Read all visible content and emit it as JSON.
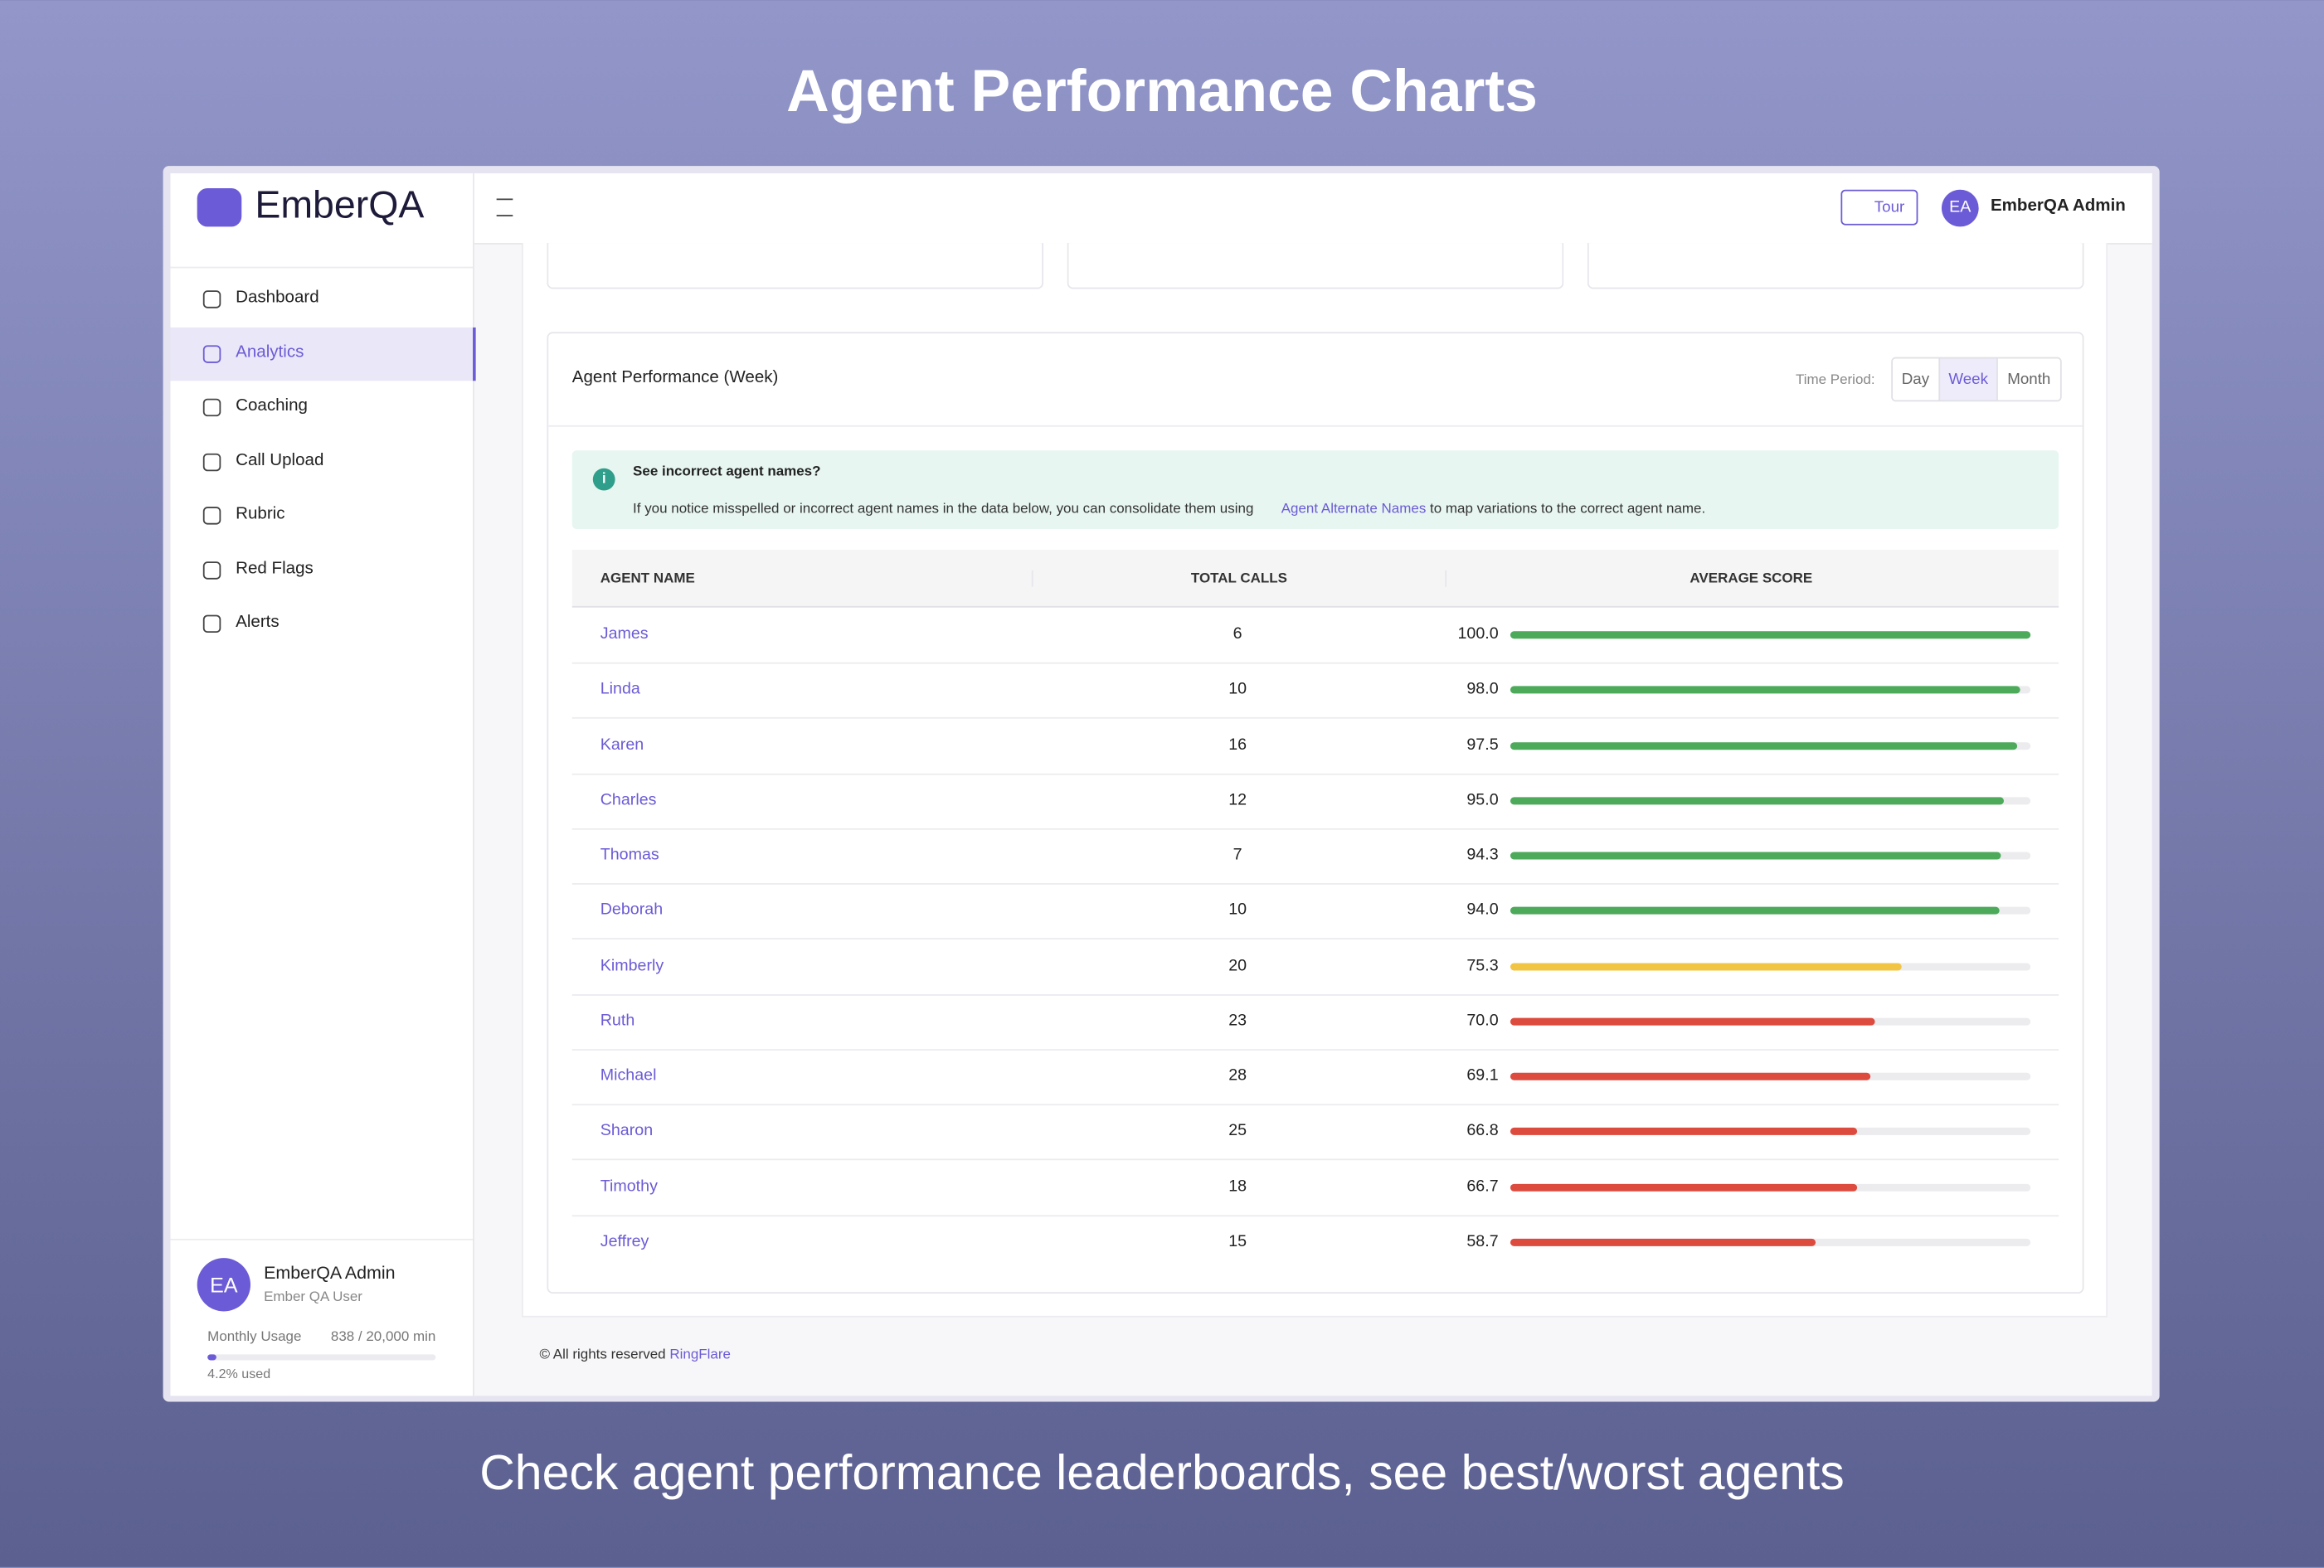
{
  "page": {
    "title": "Agent Performance Charts",
    "caption": "Check agent performance leaderboards, see best/worst agents"
  },
  "app": {
    "brand": "EmberQA",
    "tour": "Tour",
    "initials": "EA",
    "user_name": "EmberQA Admin",
    "nav": [
      "Dashboard",
      "Analytics",
      "Coaching",
      "Call Upload",
      "Rubric",
      "Red Flags",
      "Alerts"
    ],
    "active_nav": 1,
    "profile": {
      "initials": "EA",
      "name": "EmberQA Admin",
      "role": "Ember QA User"
    },
    "usage": {
      "label": "Monthly Usage",
      "amount": "838 / 20,000 min",
      "percent": 4.2,
      "percent_label": "4.2% used",
      "range": [
        0,
        100
      ]
    }
  },
  "panel": {
    "title": "Agent Performance (Week)",
    "time_period_label": "Time Period:",
    "periods": [
      "Day",
      "Week",
      "Month"
    ],
    "active_period": 1,
    "notice": {
      "title": "See incorrect agent names?",
      "text_before": "If you notice misspelled or incorrect agent names in the data below, you can consolidate them using",
      "link": "Agent Alternate Names",
      "text_after": "to map variations to the correct agent name."
    },
    "columns": [
      "AGENT NAME",
      "TOTAL CALLS",
      "AVERAGE SCORE"
    ],
    "agents": [
      "James",
      "Linda",
      "Karen",
      "Charles",
      "Thomas",
      "Deborah",
      "Kimberly",
      "Ruth",
      "Michael",
      "Sharon",
      "Timothy",
      "Jeffrey"
    ],
    "calls": [
      6,
      10,
      16,
      12,
      7,
      10,
      20,
      23,
      28,
      25,
      18,
      15
    ],
    "scores": [
      100,
      98,
      97.5,
      95,
      94.3,
      94,
      75.3,
      70,
      69.1,
      66.8,
      66.7,
      58.7
    ],
    "score_labels": [
      "100.0",
      "98.0",
      "97.5",
      "95.0",
      "94.3",
      "94.0",
      "75.3",
      "70.0",
      "69.1",
      "66.8",
      "66.7",
      "58.7"
    ],
    "score_colors": [
      "#4caa5a",
      "#4caa5a",
      "#4caa5a",
      "#4caa5a",
      "#4caa5a",
      "#4caa5a",
      "#f2c443",
      "#dd4b3e",
      "#dd4b3e",
      "#dd4b3e",
      "#dd4b3e",
      "#dd4b3e"
    ],
    "score_range": [
      0,
      100
    ]
  },
  "footer": {
    "text": "© All rights reserved",
    "link": "RingFlare"
  }
}
